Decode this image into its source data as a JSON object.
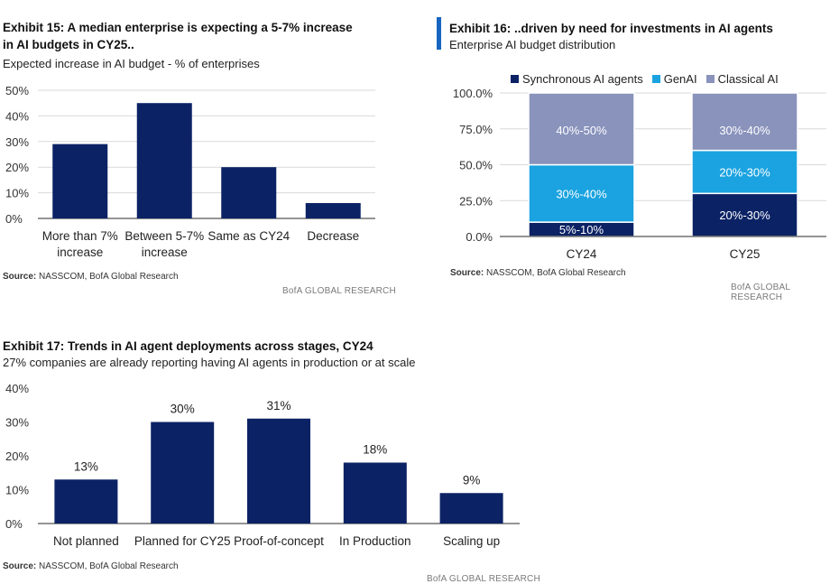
{
  "exhibit15": {
    "title": "Exhibit 15: A median enterprise is expecting a 5-7% increase in AI budgets in CY25..",
    "subtitle": "Expected increase in AI budget - % of enterprises",
    "source_label": "Source:",
    "source_text": " NASSCOM, BofA Global Research",
    "brand": "BofA GLOBAL RESEARCH"
  },
  "exhibit16": {
    "title": "Exhibit 16: ..driven by need for investments in AI agents",
    "subtitle": "Enterprise AI budget distribution",
    "source_label": "Source:",
    "source_text": " NASSCOM, BofA Global Research",
    "brand": "BofA GLOBAL RESEARCH"
  },
  "exhibit17": {
    "title": "Exhibit 17: Trends in AI agent deployments across stages, CY24",
    "subtitle": "27% companies are already reporting having AI agents in production or at scale",
    "source_label": "Source:",
    "source_text": " NASSCOM, BofA Global Research",
    "brand": "BofA GLOBAL RESEARCH"
  },
  "colors": {
    "navy": "#0b2265",
    "cyan": "#1aa3e0",
    "grey": "#8993bc",
    "axis": "#555555",
    "grid": "#d9d9d9"
  },
  "chart_data": [
    {
      "id": "exhibit15",
      "type": "bar",
      "title": "Exhibit 15: A median enterprise is expecting a 5-7% increase in AI budgets in CY25..",
      "categories": [
        [
          "More than 7%",
          "increase"
        ],
        [
          "Between 5-7%",
          "increase"
        ],
        [
          "Same as CY24"
        ],
        [
          "Decrease"
        ]
      ],
      "values": [
        29,
        45,
        20,
        6
      ],
      "ylim": [
        0,
        50
      ],
      "yticks": [
        0,
        10,
        20,
        30,
        40,
        50
      ],
      "ytick_labels": [
        "0%",
        "10%",
        "20%",
        "30%",
        "40%",
        "50%"
      ],
      "grid": true
    },
    {
      "id": "exhibit16",
      "type": "bar",
      "stacked": true,
      "title": "Exhibit 16: ..driven by need for investments in AI agents",
      "categories": [
        "CY24",
        "CY25"
      ],
      "series": [
        {
          "name": "Synchronous AI agents",
          "values": [
            10,
            30
          ],
          "labels": [
            "5%-10%",
            "20%-30%"
          ]
        },
        {
          "name": "GenAI",
          "values": [
            40,
            30
          ],
          "labels": [
            "30%-40%",
            "20%-30%"
          ]
        },
        {
          "name": "Classical AI",
          "values": [
            50,
            40
          ],
          "labels": [
            "40%-50%",
            "30%-40%"
          ]
        }
      ],
      "ylim": [
        0,
        100
      ],
      "yticks": [
        0,
        25,
        50,
        75,
        100
      ],
      "ytick_labels": [
        "0.0%",
        "25.0%",
        "50.0%",
        "75.0%",
        "100.0%"
      ],
      "legend_position": "top",
      "grid": true
    },
    {
      "id": "exhibit17",
      "type": "bar",
      "title": "Exhibit 17: Trends in AI agent deployments across stages, CY24",
      "categories": [
        "Not planned",
        "Planned for CY25",
        "Proof-of-concept",
        "In Production",
        "Scaling up"
      ],
      "values": [
        13,
        30,
        31,
        18,
        9
      ],
      "data_labels": [
        "13%",
        "30%",
        "31%",
        "18%",
        "9%"
      ],
      "ylim": [
        0,
        40
      ],
      "yticks": [
        0,
        10,
        20,
        30,
        40
      ],
      "ytick_labels": [
        "0%",
        "10%",
        "20%",
        "30%",
        "40%"
      ],
      "grid": false
    }
  ]
}
